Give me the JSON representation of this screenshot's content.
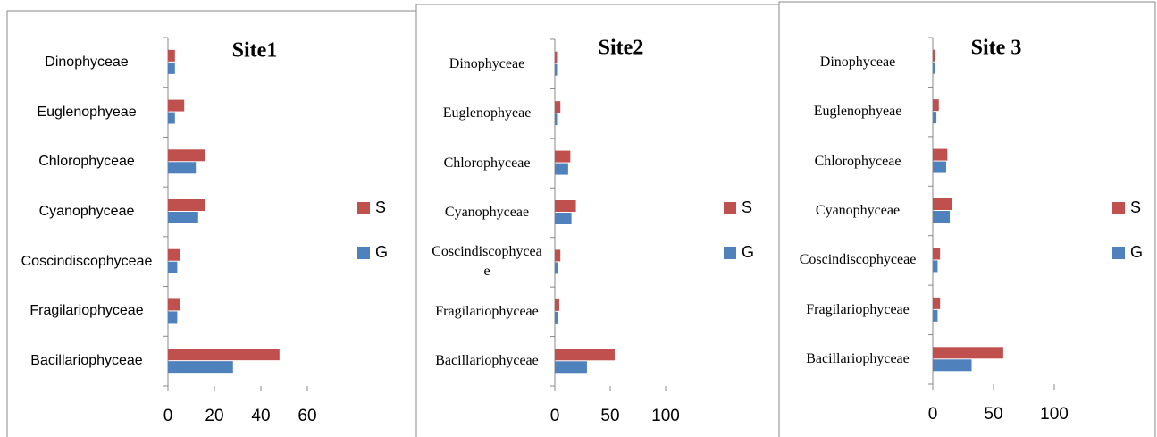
{
  "chart_data": [
    {
      "type": "bar",
      "orientation": "horizontal",
      "title": "Site1",
      "categories": [
        "Bacillariophyceae",
        "Fragilariophyceae",
        "Coscindiscophyceae",
        "Cyanophyceae",
        "Chlorophyceae",
        "Euglenophyeae",
        "Dinophyceae"
      ],
      "series": [
        {
          "name": "S",
          "color": "#c0504d",
          "values": [
            48,
            5,
            5,
            16,
            16,
            7,
            3
          ]
        },
        {
          "name": "G",
          "color": "#4f81bd",
          "values": [
            28,
            4,
            4,
            13,
            12,
            3,
            3
          ]
        }
      ],
      "xlim": [
        0,
        60
      ],
      "xticks": [
        0,
        20,
        40,
        60
      ],
      "legend": "right"
    },
    {
      "type": "bar",
      "orientation": "horizontal",
      "title": "Site2",
      "categories": [
        "Bacillariophyceae",
        "Fragilariophyceae",
        "Coscindiscophyceae",
        "Cyanophyceae",
        "Chlorophyceae",
        "Euglenophyeae",
        "Dinophyceae"
      ],
      "series": [
        {
          "name": "S",
          "color": "#c0504d",
          "values": [
            54,
            4,
            5,
            19,
            14,
            5,
            2
          ]
        },
        {
          "name": "G",
          "color": "#4f81bd",
          "values": [
            29,
            3,
            3,
            15,
            12,
            2,
            2
          ]
        }
      ],
      "xlim": [
        0,
        100
      ],
      "xticks": [
        0,
        50,
        100
      ],
      "legend": "right"
    },
    {
      "type": "bar",
      "orientation": "horizontal",
      "title": "Site 3",
      "categories": [
        "Bacillariophyceae",
        "Fragilariophyceae",
        "Coscindiscophyceae",
        "Cyanophyceae",
        "Chlorophyceae",
        "Euglenophyeae",
        "Dinophyceae"
      ],
      "series": [
        {
          "name": "S",
          "color": "#c0504d",
          "values": [
            58,
            6,
            6,
            16,
            12,
            5,
            2
          ]
        },
        {
          "name": "G",
          "color": "#4f81bd",
          "values": [
            32,
            4,
            4,
            14,
            11,
            3,
            2
          ]
        }
      ],
      "xlim": [
        0,
        100
      ],
      "xticks": [
        0,
        50,
        100
      ],
      "legend": "right"
    }
  ]
}
